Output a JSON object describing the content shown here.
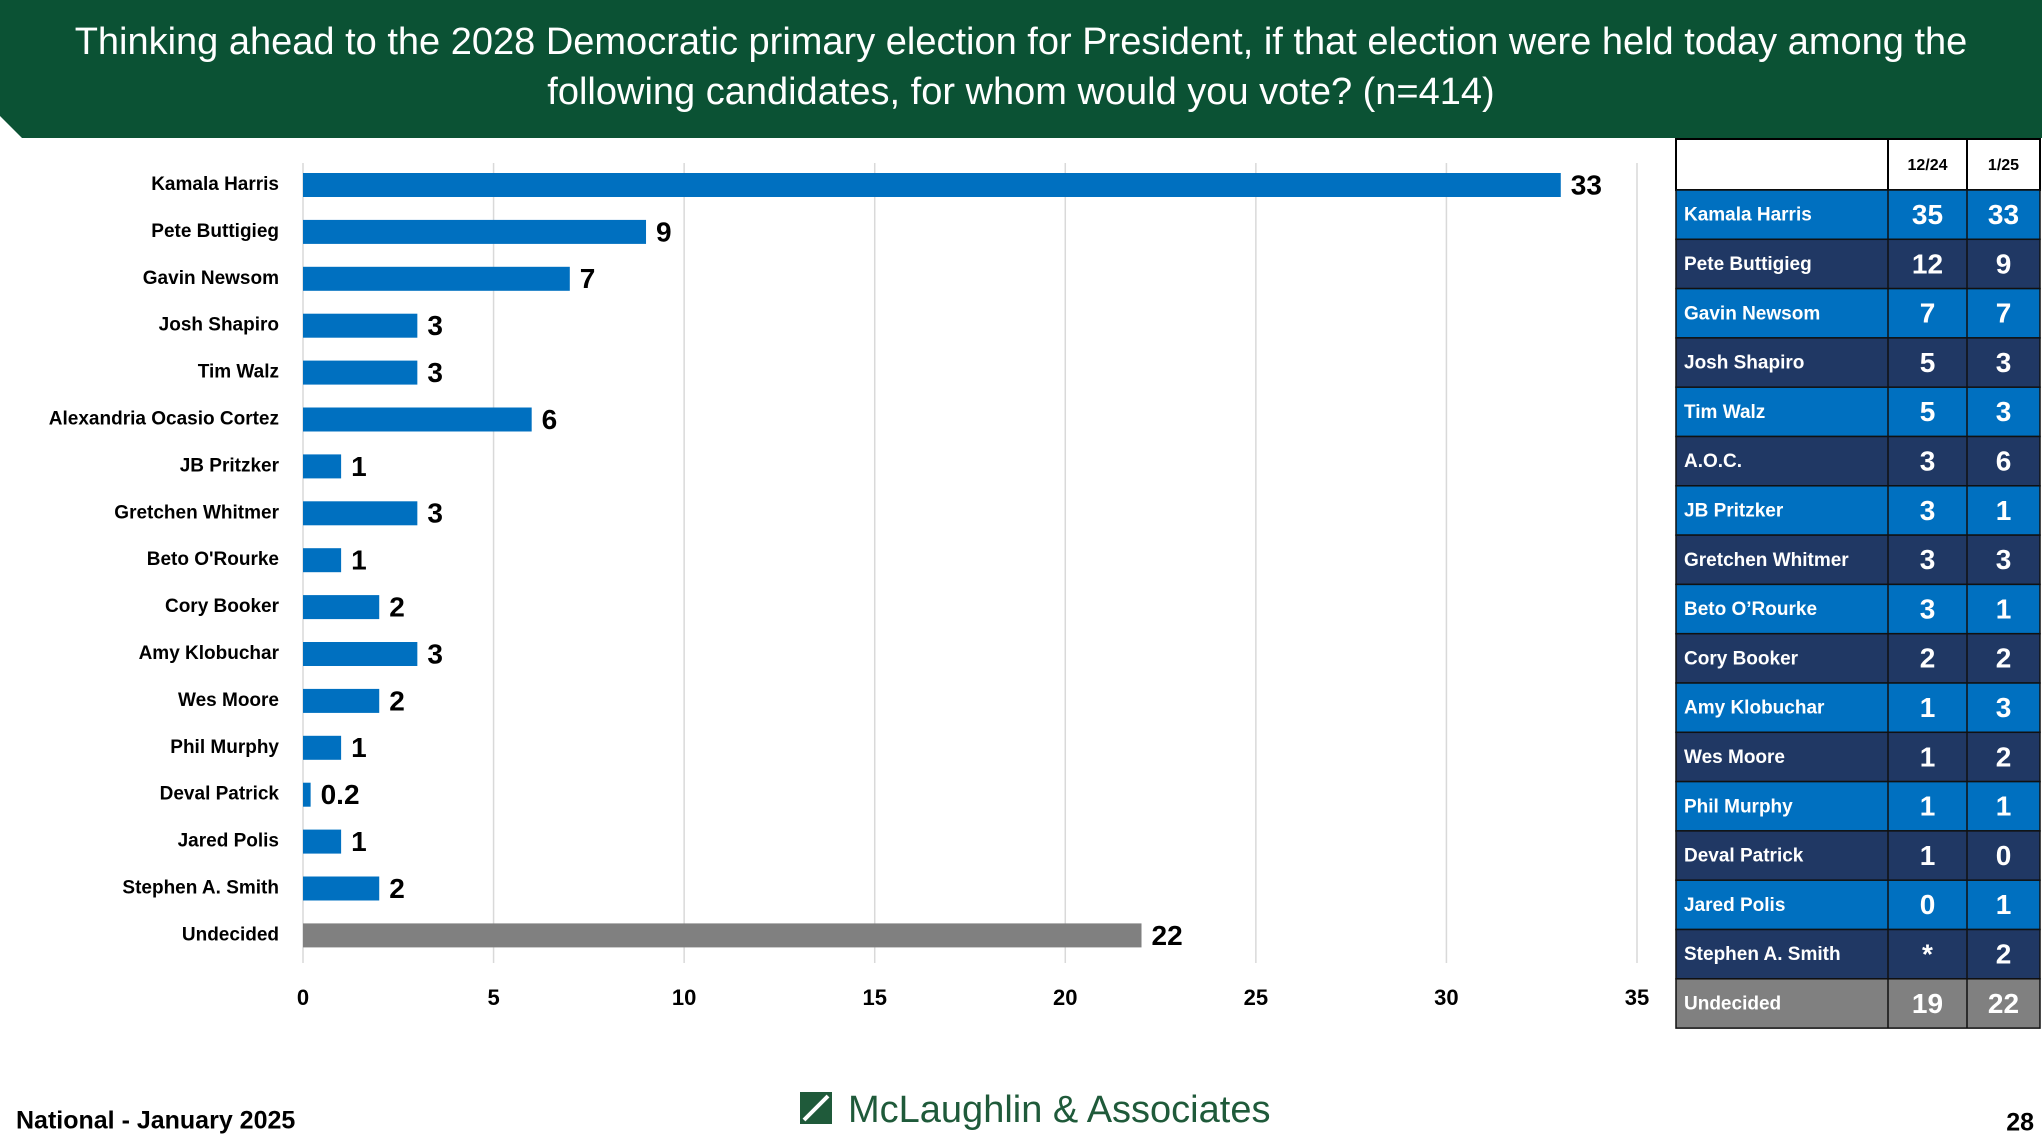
{
  "chart_data": {
    "type": "bar",
    "orientation": "horizontal",
    "title": [
      "Thinking ahead to the 2028 Democratic primary election for President, if that election were held today among the",
      "following candidates, for whom would you vote?  (n=414)"
    ],
    "categories": [
      "Kamala Harris",
      "Pete Buttigieg",
      "Gavin Newsom",
      "Josh Shapiro",
      "Tim Walz",
      "Alexandria Ocasio Cortez",
      "JB Pritzker",
      "Gretchen Whitmer",
      "Beto O'Rourke",
      "Cory Booker",
      "Amy Klobuchar",
      "Wes Moore",
      "Phil Murphy",
      "Deval Patrick",
      "Jared Polis",
      "Stephen A. Smith",
      "Undecided"
    ],
    "values": [
      33,
      9,
      7,
      3,
      3,
      6,
      1,
      3,
      1,
      2,
      3,
      2,
      1,
      0.2,
      1,
      2,
      22
    ],
    "colors": [
      "#0070c0",
      "#0070c0",
      "#0070c0",
      "#0070c0",
      "#0070c0",
      "#0070c0",
      "#0070c0",
      "#0070c0",
      "#0070c0",
      "#0070c0",
      "#0070c0",
      "#0070c0",
      "#0070c0",
      "#0070c0",
      "#0070c0",
      "#0070c0",
      "#808080"
    ],
    "xlim": [
      0,
      35
    ],
    "xticks": [
      0,
      5,
      10,
      15,
      20,
      25,
      30,
      35
    ],
    "grid": true
  },
  "table": {
    "columns": [
      "12/24",
      "1/25"
    ],
    "rows": [
      {
        "name": "Kamala Harris",
        "values": [
          35,
          33
        ]
      },
      {
        "name": "Pete Buttigieg",
        "values": [
          12,
          9
        ]
      },
      {
        "name": "Gavin Newsom",
        "values": [
          7,
          7
        ]
      },
      {
        "name": "Josh Shapiro",
        "values": [
          5,
          3
        ]
      },
      {
        "name": "Tim Walz",
        "values": [
          5,
          3
        ]
      },
      {
        "name": "A.O.C.",
        "values": [
          3,
          6
        ]
      },
      {
        "name": "JB Pritzker",
        "values": [
          3,
          1
        ]
      },
      {
        "name": "Gretchen Whitmer",
        "values": [
          3,
          3
        ]
      },
      {
        "name": "Beto O’Rourke",
        "values": [
          3,
          1
        ]
      },
      {
        "name": "Cory Booker",
        "values": [
          2,
          2
        ]
      },
      {
        "name": "Amy Klobuchar",
        "values": [
          1,
          3
        ]
      },
      {
        "name": "Wes Moore",
        "values": [
          1,
          2
        ]
      },
      {
        "name": "Phil Murphy",
        "values": [
          1,
          1
        ]
      },
      {
        "name": "Deval Patrick",
        "values": [
          1,
          0
        ]
      },
      {
        "name": "Jared Polis",
        "values": [
          0,
          1
        ]
      },
      {
        "name": "Stephen A. Smith",
        "values": [
          "*",
          2
        ]
      },
      {
        "name": "Undecided",
        "values": [
          19,
          22
        ]
      }
    ]
  },
  "footer": {
    "left": "National - January 2025",
    "logo": "McLaughlin & Associates",
    "page": "28"
  }
}
